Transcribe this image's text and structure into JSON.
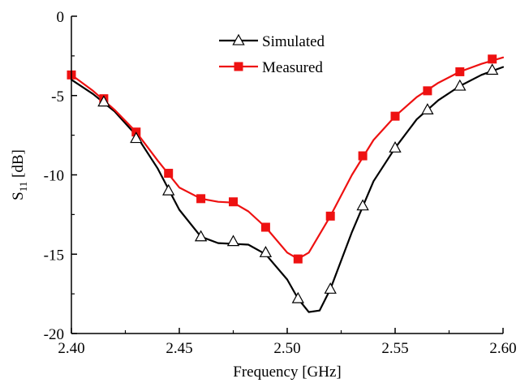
{
  "chart_data": {
    "type": "line",
    "title": "",
    "xlabel": "Frequency [GHz]",
    "ylabel": {
      "main": "S",
      "sub": "11",
      "unit": " [dB]"
    },
    "xlim": [
      2.4,
      2.6
    ],
    "ylim": [
      -20,
      0
    ],
    "xticks": [
      2.4,
      2.45,
      2.5,
      2.55,
      2.6
    ],
    "xtick_labels": [
      "2.40",
      "2.45",
      "2.50",
      "2.55",
      "2.60"
    ],
    "yticks": [
      0,
      -5,
      -10,
      -15,
      -20
    ],
    "ytick_labels": [
      "0",
      "-5",
      "-10",
      "-15",
      "-20"
    ],
    "grid": false,
    "legend_position": "top-center",
    "series": [
      {
        "name": "Simulated",
        "color": "#000000",
        "marker": "open-triangle",
        "curve": [
          [
            2.4,
            -4.0
          ],
          [
            2.41,
            -4.9
          ],
          [
            2.42,
            -6.0
          ],
          [
            2.43,
            -7.5
          ],
          [
            2.44,
            -9.6
          ],
          [
            2.45,
            -12.2
          ],
          [
            2.46,
            -13.9
          ],
          [
            2.468,
            -14.3
          ],
          [
            2.475,
            -14.35
          ],
          [
            2.482,
            -14.4
          ],
          [
            2.49,
            -15.0
          ],
          [
            2.5,
            -16.6
          ],
          [
            2.505,
            -17.8
          ],
          [
            2.51,
            -18.65
          ],
          [
            2.515,
            -18.55
          ],
          [
            2.52,
            -17.2
          ],
          [
            2.53,
            -13.6
          ],
          [
            2.54,
            -10.4
          ],
          [
            2.55,
            -8.3
          ],
          [
            2.56,
            -6.5
          ],
          [
            2.57,
            -5.3
          ],
          [
            2.58,
            -4.4
          ],
          [
            2.59,
            -3.7
          ],
          [
            2.6,
            -3.2
          ]
        ],
        "markers": [
          [
            2.415,
            -5.4
          ],
          [
            2.43,
            -7.7
          ],
          [
            2.445,
            -11.0
          ],
          [
            2.46,
            -13.9
          ],
          [
            2.475,
            -14.2
          ],
          [
            2.49,
            -14.9
          ],
          [
            2.505,
            -17.8
          ],
          [
            2.52,
            -17.2
          ],
          [
            2.535,
            -11.95
          ],
          [
            2.55,
            -8.3
          ],
          [
            2.565,
            -5.9
          ],
          [
            2.58,
            -4.4
          ],
          [
            2.595,
            -3.4
          ]
        ]
      },
      {
        "name": "Measured",
        "color": "#ee1111",
        "marker": "filled-square",
        "curve": [
          [
            2.4,
            -3.7
          ],
          [
            2.41,
            -4.7
          ],
          [
            2.42,
            -5.9
          ],
          [
            2.43,
            -7.3
          ],
          [
            2.44,
            -9.1
          ],
          [
            2.45,
            -10.8
          ],
          [
            2.46,
            -11.5
          ],
          [
            2.468,
            -11.7
          ],
          [
            2.475,
            -11.75
          ],
          [
            2.482,
            -12.3
          ],
          [
            2.49,
            -13.3
          ],
          [
            2.5,
            -14.9
          ],
          [
            2.505,
            -15.3
          ],
          [
            2.51,
            -14.9
          ],
          [
            2.52,
            -12.6
          ],
          [
            2.53,
            -10.0
          ],
          [
            2.54,
            -7.8
          ],
          [
            2.55,
            -6.3
          ],
          [
            2.56,
            -5.1
          ],
          [
            2.57,
            -4.2
          ],
          [
            2.58,
            -3.5
          ],
          [
            2.59,
            -3.0
          ],
          [
            2.6,
            -2.6
          ]
        ],
        "markers": [
          [
            2.4,
            -3.7
          ],
          [
            2.415,
            -5.2
          ],
          [
            2.43,
            -7.3
          ],
          [
            2.445,
            -9.9
          ],
          [
            2.46,
            -11.5
          ],
          [
            2.475,
            -11.7
          ],
          [
            2.49,
            -13.3
          ],
          [
            2.505,
            -15.3
          ],
          [
            2.52,
            -12.6
          ],
          [
            2.535,
            -8.8
          ],
          [
            2.55,
            -6.3
          ],
          [
            2.565,
            -4.7
          ],
          [
            2.58,
            -3.5
          ],
          [
            2.595,
            -2.7
          ]
        ]
      }
    ]
  }
}
